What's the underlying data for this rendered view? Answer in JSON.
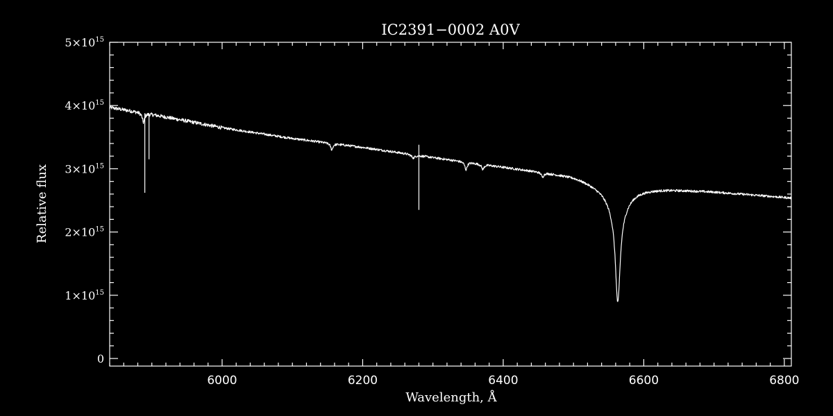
{
  "chart_data": {
    "type": "line",
    "title": "IC2391−0002  A0V",
    "xlabel": "Wavelength, Å",
    "ylabel": "Relative flux",
    "xlim": [
      5840,
      6810
    ],
    "ylim": [
      -120000000000000.0,
      5000000000000000.0
    ],
    "x_ticks": [
      6000,
      6200,
      6400,
      6600,
      6800
    ],
    "x_tick_labels": [
      "6000",
      "6200",
      "6400",
      "6600",
      "6800"
    ],
    "x_minor_step": 20,
    "y_ticks": [
      0,
      1000000000000000.0,
      2000000000000000.0,
      3000000000000000.0,
      4000000000000000.0,
      5000000000000000.0
    ],
    "y_tick_labels": [
      {
        "mantissa": "0",
        "exponent": ""
      },
      {
        "mantissa": "1×10",
        "exponent": "15"
      },
      {
        "mantissa": "2×10",
        "exponent": "15"
      },
      {
        "mantissa": "3×10",
        "exponent": "15"
      },
      {
        "mantissa": "4×10",
        "exponent": "15"
      },
      {
        "mantissa": "5×10",
        "exponent": "15"
      }
    ],
    "y_minor_step": 200000000000000.0,
    "grid": false,
    "legend": "none",
    "continuum": {
      "x": [
        5840,
        5900,
        6000,
        6100,
        6200,
        6300,
        6400,
        6500,
        6530,
        6600,
        6700,
        6810
      ],
      "y": [
        3970000000000000.0,
        3860000000000000.0,
        3650000000000000.0,
        3480000000000000.0,
        3340000000000000.0,
        3180000000000000.0,
        3030000000000000.0,
        2890000000000000.0,
        2800000000000000.0,
        2710000000000000.0,
        2640000000000000.0,
        2540000000000000.0
      ]
    },
    "absorption_lines": [
      {
        "center": 6563,
        "depth": 1420000000000000.0,
        "width": 4
      },
      {
        "center": 6563,
        "depth": 450000000000000.0,
        "width": 18
      },
      {
        "center": 5888,
        "depth": 150000000000000.0,
        "width": 2
      },
      {
        "center": 6156,
        "depth": 100000000000000.0,
        "width": 2
      },
      {
        "center": 6347,
        "depth": 120000000000000.0,
        "width": 2
      },
      {
        "center": 6371,
        "depth": 80000000000000.0,
        "width": 2
      },
      {
        "center": 6456,
        "depth": 70000000000000.0,
        "width": 2
      },
      {
        "center": 6272,
        "depth": 50000000000000.0,
        "width": 3
      }
    ],
    "spikes": [
      {
        "x": 5890,
        "y": 2620000000000000.0
      },
      {
        "x": 5896,
        "y": 3150000000000000.0
      },
      {
        "x": 6280,
        "y": 2350000000000000.0
      },
      {
        "x": 6280,
        "y": 3380000000000000.0
      }
    ],
    "noise_level": 18000000000000.0
  }
}
